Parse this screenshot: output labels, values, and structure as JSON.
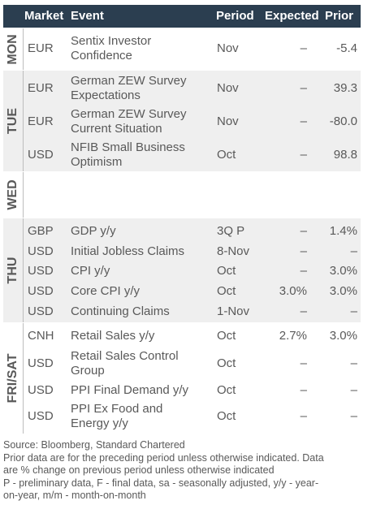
{
  "header": {
    "market": "Market",
    "event": "Event",
    "period": "Period",
    "expected": "Expected",
    "prior": "Prior"
  },
  "days": [
    {
      "label": "MON",
      "rows": [
        {
          "market": "EUR",
          "event": [
            "Sentix Investor",
            "Confidence"
          ],
          "period": "Nov",
          "expected": "–",
          "prior": "-5.4"
        }
      ]
    },
    {
      "label": "TUE",
      "rows": [
        {
          "market": "EUR",
          "event": [
            "German ZEW Survey",
            "Expectations"
          ],
          "period": "Nov",
          "expected": "–",
          "prior": "39.3"
        },
        {
          "market": "EUR",
          "event": [
            "German ZEW Survey",
            "Current Situation"
          ],
          "period": "Nov",
          "expected": "–",
          "prior": "-80.0"
        },
        {
          "market": "USD",
          "event": [
            "NFIB Small Business",
            "Optimism"
          ],
          "period": "Oct",
          "expected": "–",
          "prior": "98.8"
        }
      ]
    },
    {
      "label": "WED",
      "rows": []
    },
    {
      "label": "THU",
      "rows": [
        {
          "market": "GBP",
          "event": [
            "GDP y/y"
          ],
          "period": "3Q P",
          "expected": "–",
          "prior": "1.4%"
        },
        {
          "market": "USD",
          "event": [
            "Initial Jobless Claims"
          ],
          "period": "8-Nov",
          "expected": "–",
          "prior": "–"
        },
        {
          "market": "USD",
          "event": [
            "CPI y/y"
          ],
          "period": "Oct",
          "expected": "–",
          "prior": "3.0%"
        },
        {
          "market": "USD",
          "event": [
            "Core CPI y/y"
          ],
          "period": "Oct",
          "expected": "3.0%",
          "prior": "3.0%"
        },
        {
          "market": "USD",
          "event": [
            "Continuing Claims"
          ],
          "period": "1-Nov",
          "expected": "–",
          "prior": "–"
        }
      ]
    },
    {
      "label": "FRI/SAT",
      "rows": [
        {
          "market": "CNH",
          "event": [
            "Retail Sales y/y"
          ],
          "period": "Oct",
          "expected": "2.7%",
          "prior": "3.0%"
        },
        {
          "market": "USD",
          "event": [
            "Retail Sales Control",
            "Group"
          ],
          "period": "Oct",
          "expected": "–",
          "prior": "–"
        },
        {
          "market": "USD",
          "event": [
            "PPI Final Demand y/y"
          ],
          "period": "Oct",
          "expected": "–",
          "prior": "–"
        },
        {
          "market": "USD",
          "event": [
            "PPI Ex Food and",
            "Energy y/y"
          ],
          "period": "Oct",
          "expected": "–",
          "prior": "–"
        }
      ]
    }
  ],
  "footer": {
    "source": "Source: Bloomberg, Standard Chartered",
    "note1": "Prior data are for the preceding period unless otherwise indicated. Data",
    "note2": "are % change on previous period unless otherwise indicated",
    "note3": "P - preliminary data, F - final data, sa - seasonally adjusted, y/y - year-",
    "note4": "on-year, m/m - month-on-month"
  }
}
